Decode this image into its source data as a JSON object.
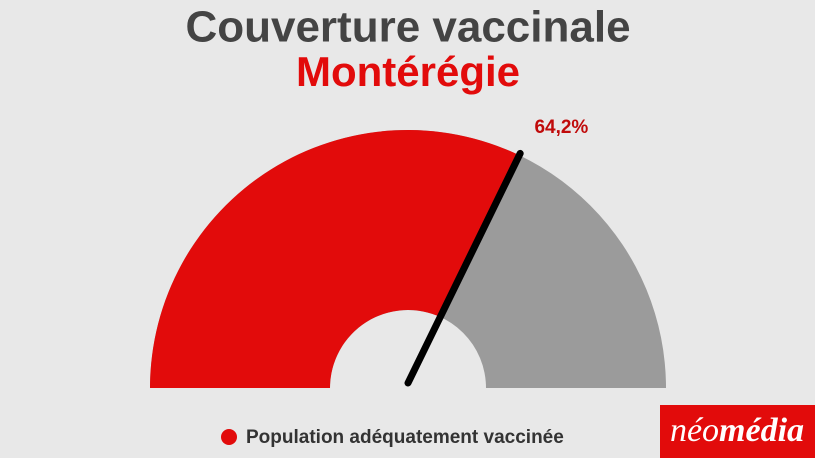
{
  "chart_data": {
    "type": "gauge",
    "title": "Couverture vaccinale",
    "subtitle": "Montérégie",
    "series": [
      {
        "name": "Population adéquatement vaccinée",
        "color": "#e20b0b",
        "values": [
          64.2
        ],
        "value_labels": [
          "64,2%"
        ]
      }
    ],
    "track_color": "#9b9b9b",
    "ylim": [
      0,
      100
    ],
    "legend": "bottom"
  },
  "logo": {
    "parts": [
      "néo",
      "média"
    ]
  }
}
